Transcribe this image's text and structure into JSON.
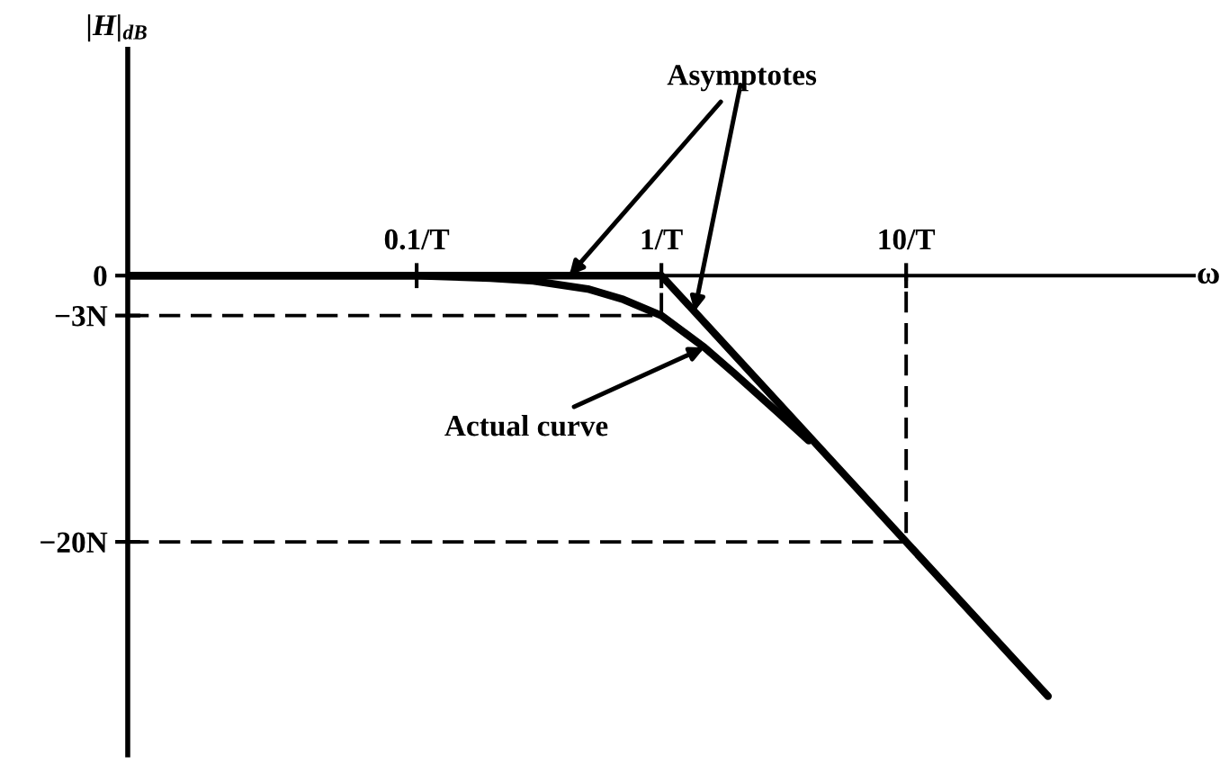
{
  "chart_data": {
    "type": "line",
    "log": "x",
    "xlabel": "ω",
    "ylabel": "|H|$_{dB}$",
    "xlim": [
      0.0066,
      150
    ],
    "ylim": [
      -36,
      17
    ],
    "xticks": [
      {
        "value": 0.1,
        "label": "0.1/T"
      },
      {
        "value": 1,
        "label": "1/T"
      },
      {
        "value": 10,
        "label": "10/T"
      }
    ],
    "yticks": [
      0,
      {
        "value": -3,
        "label": "−3N"
      },
      {
        "value": -20,
        "label": "−20N"
      }
    ],
    "series": [
      {
        "color": "#000000",
        "x": [
          0.0066,
          1,
          38
        ],
        "values": [
          0,
          0,
          -31.6
        ]
      },
      {
        "color": "#000000",
        "x": [
          0.0066,
          0.1,
          0.2,
          0.3,
          0.5,
          0.7,
          1,
          1.5,
          2,
          3,
          4
        ],
        "values": [
          0,
          0,
          -0.2,
          -0.4,
          -1,
          -1.8,
          -3,
          -5.4,
          -7.4,
          -10.3,
          -12.4
        ]
      },
      {
        "color": "#000000",
        "line_style": "dashed",
        "x": [
          0.0066,
          1,
          1
        ],
        "values": [
          -3,
          -3,
          0
        ]
      },
      {
        "color": "#000000",
        "line_style": "dashed",
        "x": [
          0.0066,
          10,
          10
        ],
        "values": [
          -20,
          -20,
          0
        ]
      }
    ],
    "annotations": [
      {
        "text": "Asymptotes",
        "x": 0.42,
        "y": 0
      },
      {
        "text": "Actual curve",
        "x": 1.5,
        "y": -5.4
      }
    ]
  }
}
